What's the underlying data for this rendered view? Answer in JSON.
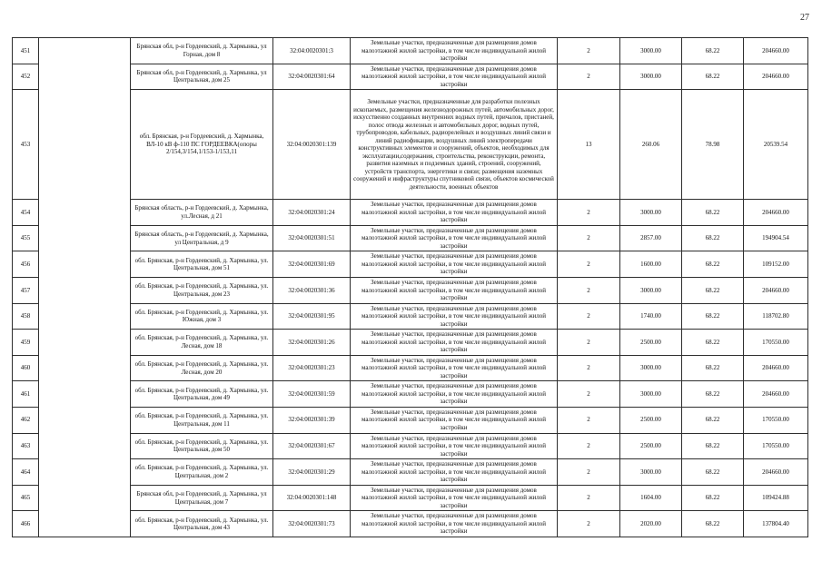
{
  "page": {
    "number": "27"
  },
  "table": {
    "rows": [
      {
        "num": "451",
        "address": "Брянская обл, р-н Гордеевский, д. Хармынка, ул Горная, дом 8",
        "cadastral": "32:04:0020301:3",
        "description": "Земельные участки, предназначенные для размещения домов малоэтажной жилой застройки, в том числе индивидуальной жилой застройки",
        "count": "2",
        "area": "3000.00",
        "rate": "68.22",
        "value": "204660.00"
      },
      {
        "num": "452",
        "address": "Брянская обл, р-н Гордеевский, д. Хармынка, ул Центральная, дом 25",
        "cadastral": "32:04:0020301:64",
        "description": "Земельные участки, предназначенные для размещения домов малоэтажной жилой застройки, в том числе индивидуальной жилой застройки",
        "count": "2",
        "area": "3000.00",
        "rate": "68.22",
        "value": "204660.00"
      },
      {
        "num": "453",
        "address": "обл. Брянская, р-н Гордеевский, д. Хармынка, ВЛ-10 кВ ф-110 ПС ГОРДЕЕВКА(опоры 2/154,3/154,1/153-1/153,11",
        "cadastral": "32:04:0020301:139",
        "description": "Земельные участки, предназначенные для разработки полезных ископаемых, размещения железнодорожных путей, автомобильных дорог, искусственно созданных внутренних водных путей, причалов, пристаней, полос отвода железных и автомобильных дорог, водных путей, трубопроводов, кабельных, радиорелейных и воздушных линий связи и линий радиофикации, воздушных линий электропередачи конструктивных элементов и сооружений, объектов, необходимых для эксплуатации,содержания, строительства, реконструкции, ремонта, развития наземных и подземных зданий, строений, сооружений, устройств транспорта, энергетики и связи; размещения наземных сооружений и инфраструктуры спутниковой связи, объектов космической деятельности, военных объектов",
        "count": "13",
        "area": "260.06",
        "rate": "78.98",
        "value": "20539.54"
      },
      {
        "num": "454",
        "address": "Брянская область, р-н Гордеевский, д. Хармынка, ул.Лесная, д 21",
        "cadastral": "32:04:0020301:24",
        "description": "Земельные участки, предназначенные для размещения домов малоэтажной жилой застройки, в том числе индивидуальной жилой застройки",
        "count": "2",
        "area": "3000.00",
        "rate": "68.22",
        "value": "204660.00"
      },
      {
        "num": "455",
        "address": "Брянская область, р-н Гордеевский, д. Хармынка, ул Центральная, д 9",
        "cadastral": "32:04:0020301:51",
        "description": "Земельные участки, предназначенные для размещения домов малоэтажной жилой застройки, в том числе индивидуальной жилой застройки",
        "count": "2",
        "area": "2857.00",
        "rate": "68.22",
        "value": "194904.54"
      },
      {
        "num": "456",
        "address": "обл. Брянская, р-н Гордеевский, д. Хармынка, ул. Центральная, дом 51",
        "cadastral": "32:04:0020301:69",
        "description": "Земельные участки, предназначенные для размещения домов малоэтажной жилой застройки, в том числе индивидуальной жилой застройки",
        "count": "2",
        "area": "1600.00",
        "rate": "68.22",
        "value": "109152.00"
      },
      {
        "num": "457",
        "address": "обл. Брянская, р-н Гордеевский, д. Хармынка, ул. Центральная, дом 23",
        "cadastral": "32:04:0020301:36",
        "description": "Земельные участки, предназначенные для размещения домов малоэтажной жилой застройки, в том числе индивидуальной жилой застройки",
        "count": "2",
        "area": "3000.00",
        "rate": "68.22",
        "value": "204660.00"
      },
      {
        "num": "458",
        "address": "обл. Брянская, р-н Гордеевский, д. Хармынка, ул. Южная, дом 3",
        "cadastral": "32:04:0020301:95",
        "description": "Земельные участки, предназначенные для размещения домов малоэтажной жилой застройки, в том числе индивидуальной жилой застройки",
        "count": "2",
        "area": "1740.00",
        "rate": "68.22",
        "value": "118702.80"
      },
      {
        "num": "459",
        "address": "обл. Брянская, р-н Гордеевский, д. Хармынка, ул. Лесная, дом 18",
        "cadastral": "32:04:0020301:26",
        "description": "Земельные участки, предназначенные для размещения домов малоэтажной жилой застройки, в том числе индивидуальной жилой застройки",
        "count": "2",
        "area": "2500.00",
        "rate": "68.22",
        "value": "170550.00"
      },
      {
        "num": "460",
        "address": "обл. Брянская, р-н Гордеевский, д. Хармынка, ул. Лесная, дом 20",
        "cadastral": "32:04:0020301:23",
        "description": "Земельные участки, предназначенные для размещения домов малоэтажной жилой застройки, в том числе индивидуальной жилой застройки",
        "count": "2",
        "area": "3000.00",
        "rate": "68.22",
        "value": "204660.00"
      },
      {
        "num": "461",
        "address": "обл. Брянская, р-н Гордеевский, д. Хармынка, ул. Центральная, дом 49",
        "cadastral": "32:04:0020301:59",
        "description": "Земельные участки, предназначенные для размещения домов малоэтажной жилой застройки, в том числе индивидуальной жилой застройки",
        "count": "2",
        "area": "3000.00",
        "rate": "68.22",
        "value": "204660.00"
      },
      {
        "num": "462",
        "address": "обл. Брянская, р-н Гордеевский, д. Хармынка, ул. Центральная, дом 11",
        "cadastral": "32:04:0020301:39",
        "description": "Земельные участки, предназначенные для размещения домов малоэтажной жилой застройки, в том числе индивидуальной жилой застройки",
        "count": "2",
        "area": "2500.00",
        "rate": "68.22",
        "value": "170550.00"
      },
      {
        "num": "463",
        "address": "обл. Брянская, р-н Гордеевский, д. Хармынка, ул. Центральная, дом 50",
        "cadastral": "32:04:0020301:67",
        "description": "Земельные участки, предназначенные для размещения домов малоэтажной жилой застройки, в том числе индивидуальной жилой застройки",
        "count": "2",
        "area": "2500.00",
        "rate": "68.22",
        "value": "170550.00"
      },
      {
        "num": "464",
        "address": "обл. Брянская, р-н Гордеевский, д. Хармынка, ул. Центральная, дом 2",
        "cadastral": "32:04:0020301:29",
        "description": "Земельные участки, предназначенные для размещения домов малоэтажной жилой застройки, в том числе индивидуальной жилой застройки",
        "count": "2",
        "area": "3000.00",
        "rate": "68.22",
        "value": "204660.00"
      },
      {
        "num": "465",
        "address": "Брянская обл, р-н Гордеевский, д. Хармынка, ул Центральная, дом 7",
        "cadastral": "32:04:0020301:148",
        "description": "Земельные участки, предназначенные для размещения домов малоэтажной жилой застройки, в том числе индивидуальной жилой застройки",
        "count": "2",
        "area": "1604.00",
        "rate": "68.22",
        "value": "109424.88"
      },
      {
        "num": "466",
        "address": "обл. Брянская, р-н Гордеевский, д. Хармынка, ул. Центральная, дом 43",
        "cadastral": "32:04:0020301:73",
        "description": "Земельные участки, предназначенные для размещения домов малоэтажной жилой застройки, в том числе индивидуальной жилой застройки",
        "count": "2",
        "area": "2020.00",
        "rate": "68.22",
        "value": "137804.40"
      }
    ]
  }
}
